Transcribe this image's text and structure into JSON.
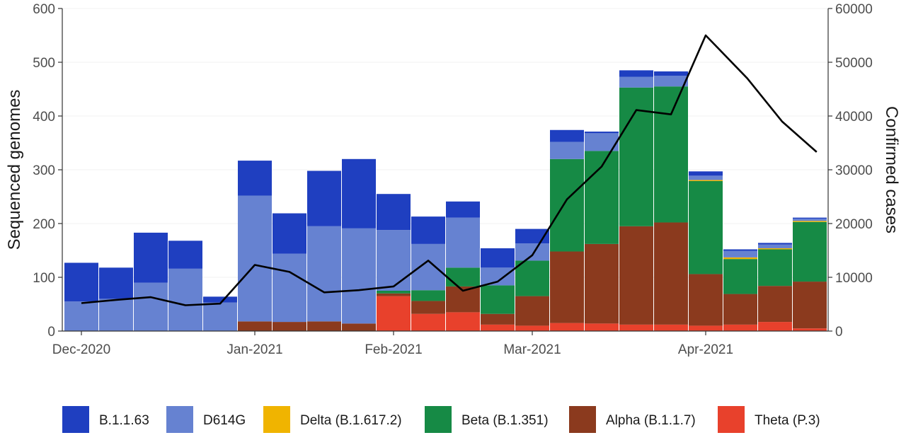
{
  "chart_data": {
    "type": "bar",
    "stacked": true,
    "ylabel_left": "Sequenced genomes",
    "ylabel_right": "Confirmed cases",
    "ylim_left": [
      0,
      600
    ],
    "ylim_right": [
      0,
      60000
    ],
    "yticks_left": [
      "0",
      "100",
      "200",
      "300",
      "400",
      "500",
      "600"
    ],
    "yticks_right": [
      "0",
      "10000",
      "20000",
      "30000",
      "40000",
      "50000",
      "60000"
    ],
    "x_tick_labels": [
      "Dec-2020",
      "Jan-2021",
      "Feb-2021",
      "Mar-2021",
      "Apr-2021"
    ],
    "x_tick_positions": [
      0,
      5,
      9,
      13,
      18
    ],
    "n_bars": 22,
    "legend_position": "bottom",
    "series": [
      {
        "name": "Theta (P.3)",
        "color": "#e8412c",
        "values": [
          0,
          0,
          0,
          0,
          0,
          0,
          0,
          0,
          0,
          65,
          32,
          35,
          12,
          10,
          15,
          14,
          12,
          12,
          10,
          12,
          17,
          5
        ]
      },
      {
        "name": "Alpha (B.1.1.7)",
        "color": "#8b3a1e",
        "values": [
          0,
          0,
          0,
          0,
          0,
          18,
          17,
          18,
          14,
          5,
          24,
          48,
          20,
          55,
          133,
          148,
          183,
          190,
          96,
          57,
          67,
          87
        ]
      },
      {
        "name": "Beta (B.1.351)",
        "color": "#168a45",
        "values": [
          0,
          0,
          0,
          0,
          0,
          0,
          0,
          0,
          0,
          5,
          20,
          35,
          53,
          66,
          172,
          173,
          258,
          253,
          173,
          65,
          68,
          111
        ]
      },
      {
        "name": "Delta (B.1.617.2)",
        "color": "#f0b400",
        "values": [
          0,
          0,
          0,
          0,
          0,
          0,
          0,
          0,
          0,
          0,
          0,
          0,
          0,
          0,
          0,
          0,
          0,
          0,
          2,
          3,
          2,
          2
        ]
      },
      {
        "name": "D614G",
        "color": "#6682d1",
        "values": [
          55,
          60,
          90,
          116,
          53,
          234,
          127,
          177,
          177,
          113,
          86,
          93,
          33,
          32,
          32,
          33,
          20,
          20,
          8,
          12,
          7,
          4
        ]
      },
      {
        "name": "B.1.1.63",
        "color": "#1f3fc0",
        "values": [
          72,
          58,
          93,
          52,
          11,
          65,
          75,
          103,
          129,
          67,
          51,
          30,
          36,
          27,
          22,
          3,
          12,
          8,
          8,
          3,
          3,
          2
        ]
      }
    ],
    "line": {
      "name": "Confirmed cases",
      "axis": "right",
      "color": "#000000",
      "x": [
        0,
        1,
        2,
        3,
        4,
        5,
        6,
        7,
        8,
        9,
        10,
        11,
        12,
        13,
        14,
        15,
        16,
        17,
        18,
        19.2,
        20.2,
        21.2
      ],
      "values": [
        5200,
        5800,
        6300,
        4800,
        5100,
        12300,
        11000,
        7200,
        7600,
        8300,
        13100,
        7500,
        9200,
        14100,
        24500,
        30600,
        41100,
        40300,
        55000,
        47000,
        39000,
        33300
      ]
    },
    "legend_order": [
      "B.1.1.63",
      "D614G",
      "Delta (B.1.617.2)",
      "Beta (B.1.351)",
      "Alpha (B.1.1.7)",
      "Theta (P.3)"
    ]
  }
}
